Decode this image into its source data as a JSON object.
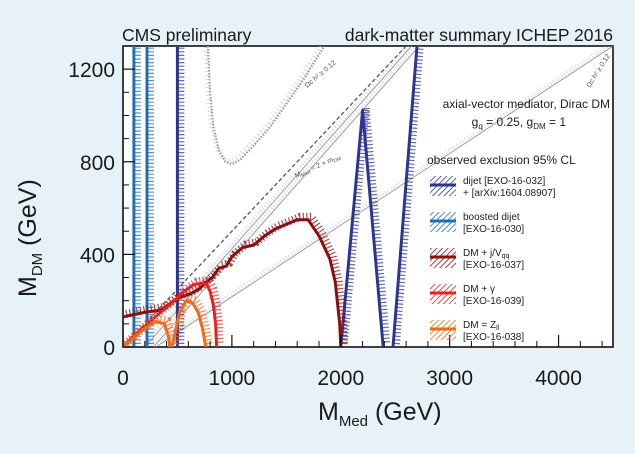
{
  "header": {
    "left": "CMS preliminary",
    "right": "dark-matter summary ICHEP 2016"
  },
  "model": {
    "line1": "axial-vector mediator, Dirac DM",
    "line2_a": "g",
    "line2_a_sub": "q",
    "line2_b": " = 0.25, g",
    "line2_b_sub": "DM",
    "line2_c": " = 1"
  },
  "legend": {
    "title": "observed exclusion 95% CL",
    "items": [
      {
        "line1": "dijet [EXO-16-032]",
        "line2": "+ [arXiv:1604.08907]",
        "color": "#2c3590"
      },
      {
        "line1": "boosted dijet",
        "line2": "[EXO-16-030]",
        "color": "#1f6fb2"
      },
      {
        "line1": "DM + j/V",
        "line1_sub": "qq",
        "line2": "[EXO-16-037]",
        "color": "#8b0f12"
      },
      {
        "line1": "DM + γ",
        "line2": "[EXO-16-039]",
        "color": "#e02424"
      },
      {
        "line1": "DM = Z",
        "line1_sub": "ll",
        "line2": "[EXO-16-038]",
        "color": "#f06a1e"
      }
    ]
  },
  "diagonal_label": {
    "main": "M",
    "main_sub": "Med",
    "main_rest": " = 2 × m",
    "main_rest_sub": "DM"
  },
  "relic_label": "Ωc h² ≥ 0.12",
  "chart_data": {
    "type": "line",
    "xlabel": "M",
    "xlabel_sub": "Med",
    "xlabel_unit": " (GeV)",
    "ylabel": "M",
    "ylabel_sub": "DM",
    "ylabel_unit": " (GeV)",
    "xlim": [
      0,
      4500
    ],
    "ylim": [
      0,
      1300
    ],
    "xticks": [
      0,
      1000,
      2000,
      3000,
      4000
    ],
    "xtick_labels": [
      "0",
      "1000",
      "2000",
      "3000",
      "4000"
    ],
    "yticks": [
      0,
      400,
      800,
      1200
    ],
    "ytick_labels": [
      "0",
      "400",
      "800",
      "1200"
    ],
    "series": [
      {
        "name": "dijet [EXO-16-032] + [arXiv:1604.08907]",
        "color": "#2c3590",
        "lines": [
          [
            [
              500,
              0
            ],
            [
              500,
              1300
            ]
          ],
          [
            [
              2000,
              0
            ],
            [
              2200,
              1020
            ],
            [
              2390,
              0
            ]
          ],
          [
            [
              2480,
              0
            ],
            [
              2700,
              1300
            ]
          ]
        ]
      },
      {
        "name": "boosted dijet [EXO-16-030]",
        "color": "#1f6fb2",
        "lines": [
          [
            [
              100,
              0
            ],
            [
              100,
              1300
            ]
          ],
          [
            [
              220,
              0
            ],
            [
              220,
              1300
            ]
          ]
        ]
      },
      {
        "name": "DM + j/Vqq [EXO-16-037]",
        "color": "#8b0f12",
        "lines": [
          [
            [
              0,
              130
            ],
            [
              200,
              150
            ],
            [
              350,
              160
            ],
            [
              500,
              210
            ],
            [
              620,
              230
            ],
            [
              700,
              250
            ],
            [
              760,
              280
            ],
            [
              820,
              300
            ],
            [
              880,
              340
            ],
            [
              950,
              350
            ],
            [
              1000,
              390
            ],
            [
              1100,
              430
            ],
            [
              1200,
              440
            ],
            [
              1300,
              480
            ],
            [
              1400,
              510
            ],
            [
              1500,
              530
            ],
            [
              1600,
              550
            ],
            [
              1700,
              550
            ],
            [
              1800,
              480
            ],
            [
              1900,
              380
            ],
            [
              1950,
              280
            ],
            [
              1990,
              100
            ],
            [
              2000,
              0
            ]
          ]
        ]
      },
      {
        "name": "DM + γ [EXO-16-039]",
        "color": "#e02424",
        "lines": [
          [
            [
              0,
              0
            ],
            [
              100,
              50
            ],
            [
              200,
              90
            ],
            [
              320,
              140
            ],
            [
              450,
              190
            ],
            [
              560,
              240
            ],
            [
              650,
              270
            ],
            [
              720,
              275
            ],
            [
              770,
              270
            ],
            [
              800,
              240
            ],
            [
              830,
              180
            ],
            [
              850,
              100
            ],
            [
              860,
              0
            ]
          ]
        ]
      },
      {
        "name": "DM = Zll [EXO-16-038]",
        "color": "#f06a1e",
        "lines": [
          [
            [
              0,
              0
            ],
            [
              100,
              40
            ],
            [
              200,
              80
            ],
            [
              300,
              110
            ],
            [
              380,
              100
            ],
            [
              420,
              40
            ],
            [
              430,
              0
            ]
          ],
          [
            [
              450,
              0
            ],
            [
              520,
              150
            ],
            [
              580,
              200
            ],
            [
              640,
              190
            ],
            [
              690,
              150
            ],
            [
              730,
              80
            ],
            [
              760,
              0
            ]
          ]
        ]
      }
    ],
    "reference_lines": [
      {
        "label": "M_Med = 2 × m_DM",
        "points": [
          [
            0,
            0
          ],
          [
            2600,
            1300
          ]
        ],
        "style": "dashed-dark"
      },
      {
        "label": "relic",
        "points": [
          [
            200,
            0
          ],
          [
            2650,
            1300
          ]
        ],
        "style": "thin-grey"
      },
      {
        "label": "relic",
        "points": [
          [
            280,
            0
          ],
          [
            2720,
            1300
          ]
        ],
        "style": "thin-grey"
      },
      {
        "label": "relic",
        "points": [
          [
            300,
            0
          ],
          [
            4500,
            1300
          ]
        ],
        "style": "thin-grey"
      },
      {
        "label": "relic-curve",
        "points": [
          [
            780,
            1300
          ],
          [
            800,
            1100
          ],
          [
            830,
            950
          ],
          [
            880,
            850
          ],
          [
            940,
            800
          ],
          [
            1000,
            790
          ],
          [
            1080,
            810
          ],
          [
            1200,
            870
          ],
          [
            1350,
            950
          ],
          [
            1500,
            1050
          ],
          [
            1650,
            1150
          ],
          [
            1850,
            1300
          ]
        ],
        "style": "dotted-grey"
      }
    ]
  }
}
